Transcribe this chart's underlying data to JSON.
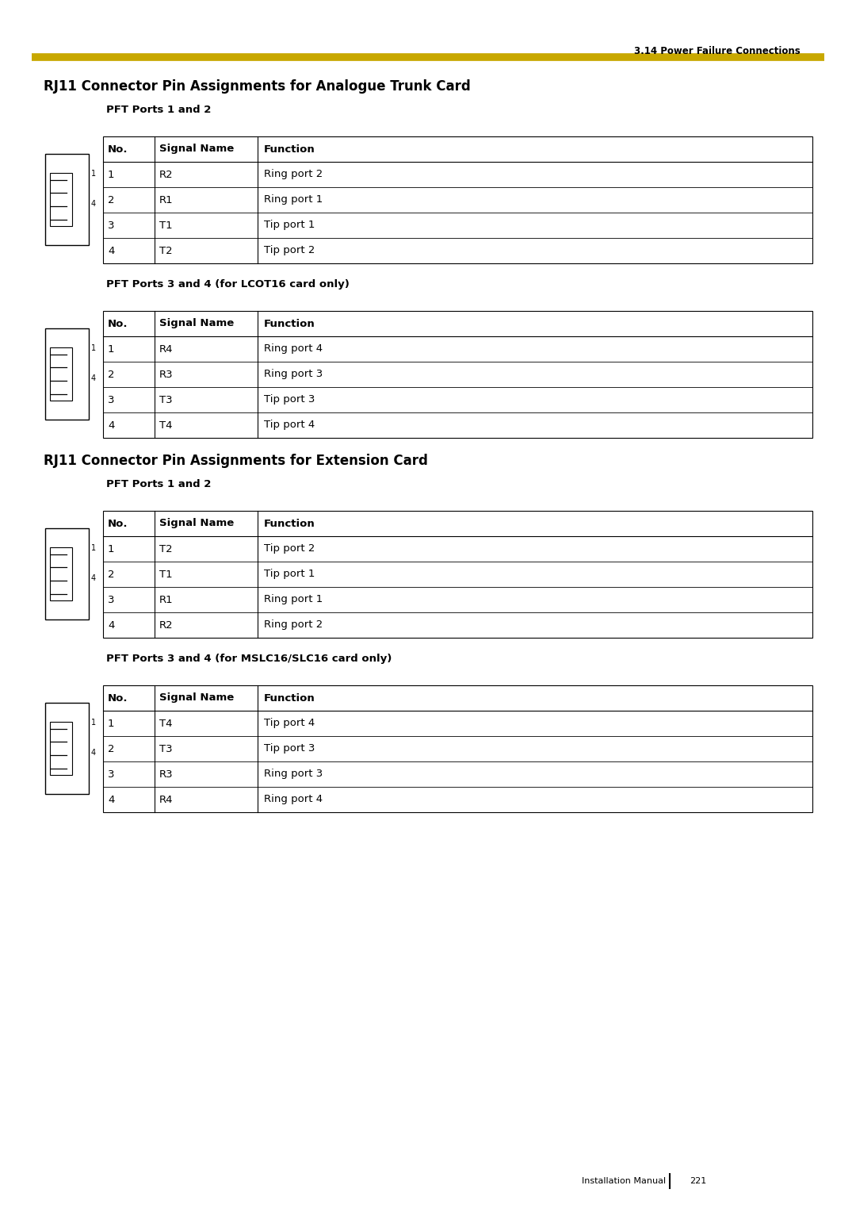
{
  "page_header": "3.14 Power Failure Connections",
  "header_line_color": "#C8A800",
  "page_footer": "Installation Manual",
  "page_number": "221",
  "bg_color": "#FFFFFF",
  "section1_title": "RJ11 Connector Pin Assignments for Analogue Trunk Card",
  "section1_sub1": "PFT Ports 1 and 2",
  "section1_sub2": "PFT Ports 3 and 4 (for LCOT16 card only)",
  "section2_title": "RJ11 Connector Pin Assignments for Extension Card",
  "section2_sub1": "PFT Ports 1 and 2",
  "section2_sub2": "PFT Ports 3 and 4 (for MSLC16/SLC16 card only)",
  "col_headers": [
    "No.",
    "Signal Name",
    "Function"
  ],
  "tables": [
    {
      "rows": [
        [
          "1",
          "R2",
          "Ring port 2"
        ],
        [
          "2",
          "R1",
          "Ring port 1"
        ],
        [
          "3",
          "T1",
          "Tip port 1"
        ],
        [
          "4",
          "T2",
          "Tip port 2"
        ]
      ]
    },
    {
      "rows": [
        [
          "1",
          "R4",
          "Ring port 4"
        ],
        [
          "2",
          "R3",
          "Ring port 3"
        ],
        [
          "3",
          "T3",
          "Tip port 3"
        ],
        [
          "4",
          "T4",
          "Tip port 4"
        ]
      ]
    },
    {
      "rows": [
        [
          "1",
          "T2",
          "Tip port 2"
        ],
        [
          "2",
          "T1",
          "Tip port 1"
        ],
        [
          "3",
          "R1",
          "Ring port 1"
        ],
        [
          "4",
          "R2",
          "Ring port 2"
        ]
      ]
    },
    {
      "rows": [
        [
          "1",
          "T4",
          "Tip port 4"
        ],
        [
          "2",
          "T3",
          "Tip port 3"
        ],
        [
          "3",
          "R3",
          "Ring port 3"
        ],
        [
          "4",
          "R4",
          "Ring port 4"
        ]
      ]
    }
  ]
}
